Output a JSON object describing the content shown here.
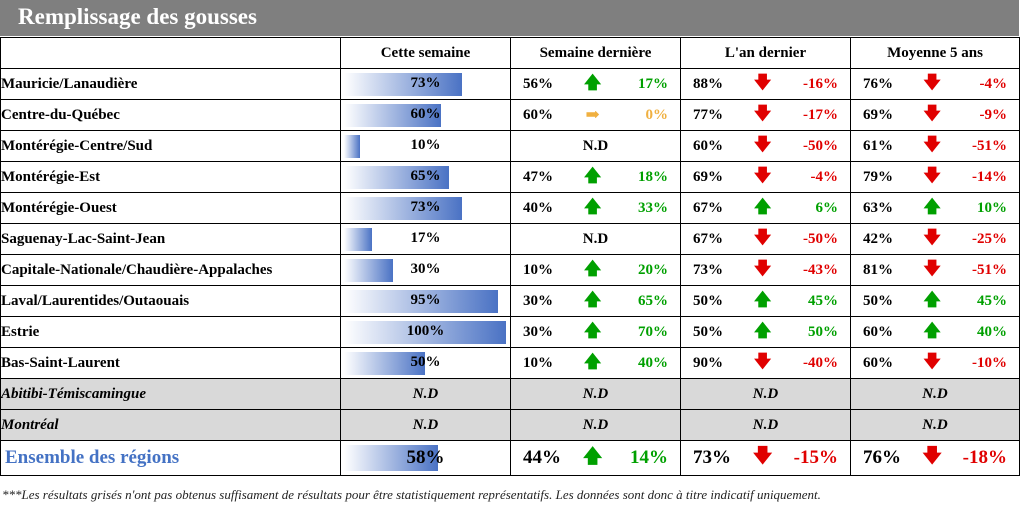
{
  "title": "Remplissage des gousses",
  "headers": [
    "",
    "Cette semaine",
    "Semaine dernière",
    "L'an dernier",
    "Moyenne 5 ans"
  ],
  "colors": {
    "up": "#00a000",
    "down": "#e00000",
    "flat": "#f0b040",
    "bar": "#4a72c4",
    "title_bg": "#7f7f7f",
    "grey_row": "#d9d9d9",
    "total_text": "#4472c4"
  },
  "rows": [
    {
      "region": "Mauricie/Lanaudière",
      "cs": "73%",
      "cs_fraction": 0.73,
      "sd": "56%",
      "sd_dir": "up",
      "sd_arrow": "🡅",
      "sd_var": "17%",
      "ad": "88%",
      "ad_dir": "down",
      "ad_arrow": "🡇",
      "ad_var": "-16%",
      "m5": "76%",
      "m5_dir": "down",
      "m5_arrow": "🡇",
      "m5_var": "-4%"
    },
    {
      "region": "Centre-du-Québec",
      "cs": "60%",
      "cs_fraction": 0.6,
      "sd": "60%",
      "sd_dir": "flat",
      "sd_arrow": "➡",
      "sd_var": "0%",
      "ad": "77%",
      "ad_dir": "down",
      "ad_arrow": "🡇",
      "ad_var": "-17%",
      "m5": "69%",
      "m5_dir": "down",
      "m5_arrow": "🡇",
      "m5_var": "-9%"
    },
    {
      "region": "Montérégie-Centre/Sud",
      "cs": "10%",
      "cs_fraction": 0.1,
      "sd_nd": "N.D",
      "ad": "60%",
      "ad_dir": "down",
      "ad_arrow": "🡇",
      "ad_var": "-50%",
      "m5": "61%",
      "m5_dir": "down",
      "m5_arrow": "🡇",
      "m5_var": "-51%"
    },
    {
      "region": "Montérégie-Est",
      "cs": "65%",
      "cs_fraction": 0.65,
      "sd": "47%",
      "sd_dir": "up",
      "sd_arrow": "🡅",
      "sd_var": "18%",
      "ad": "69%",
      "ad_dir": "down",
      "ad_arrow": "🡇",
      "ad_var": "-4%",
      "m5": "79%",
      "m5_dir": "down",
      "m5_arrow": "🡇",
      "m5_var": "-14%"
    },
    {
      "region": "Montérégie-Ouest",
      "cs": "73%",
      "cs_fraction": 0.73,
      "sd": "40%",
      "sd_dir": "up",
      "sd_arrow": "🡅",
      "sd_var": "33%",
      "ad": "67%",
      "ad_dir": "up",
      "ad_arrow": "🡅",
      "ad_var": "6%",
      "m5": "63%",
      "m5_dir": "up",
      "m5_arrow": "🡅",
      "m5_var": "10%"
    },
    {
      "region": "Saguenay-Lac-Saint-Jean",
      "cs": "17%",
      "cs_fraction": 0.17,
      "sd_nd": "N.D",
      "ad": "67%",
      "ad_dir": "down",
      "ad_arrow": "🡇",
      "ad_var": "-50%",
      "m5": "42%",
      "m5_dir": "down",
      "m5_arrow": "🡇",
      "m5_var": "-25%"
    },
    {
      "region": "Capitale-Nationale/Chaudière-Appalaches",
      "cs": "30%",
      "cs_fraction": 0.3,
      "sd": "10%",
      "sd_dir": "up",
      "sd_arrow": "🡅",
      "sd_var": "20%",
      "ad": "73%",
      "ad_dir": "down",
      "ad_arrow": "🡇",
      "ad_var": "-43%",
      "m5": "81%",
      "m5_dir": "down",
      "m5_arrow": "🡇",
      "m5_var": "-51%"
    },
    {
      "region": "Laval/Laurentides/Outaouais",
      "cs": "95%",
      "cs_fraction": 0.95,
      "sd": "30%",
      "sd_dir": "up",
      "sd_arrow": "🡅",
      "sd_var": "65%",
      "ad": "50%",
      "ad_dir": "up",
      "ad_arrow": "🡅",
      "ad_var": "45%",
      "m5": "50%",
      "m5_dir": "up",
      "m5_arrow": "🡅",
      "m5_var": "45%"
    },
    {
      "region": "Estrie",
      "cs": "100%",
      "cs_fraction": 1.0,
      "sd": "30%",
      "sd_dir": "up",
      "sd_arrow": "🡅",
      "sd_var": "70%",
      "ad": "50%",
      "ad_dir": "up",
      "ad_arrow": "🡅",
      "ad_var": "50%",
      "m5": "60%",
      "m5_dir": "up",
      "m5_arrow": "🡅",
      "m5_var": "40%"
    },
    {
      "region": "Bas-Saint-Laurent",
      "cs": "50%",
      "cs_fraction": 0.5,
      "sd": "10%",
      "sd_dir": "up",
      "sd_arrow": "🡅",
      "sd_var": "40%",
      "ad": "90%",
      "ad_dir": "down",
      "ad_arrow": "🡇",
      "ad_var": "-40%",
      "m5": "60%",
      "m5_dir": "down",
      "m5_arrow": "🡇",
      "m5_var": "-10%"
    }
  ],
  "grey_rows": [
    {
      "region": "Abitibi-Témiscamingue",
      "cs": "N.D",
      "sd": "N.D",
      "ad": "N.D",
      "m5": "N.D"
    },
    {
      "region": "Montréal",
      "cs": "N.D",
      "sd": "N.D",
      "ad": "N.D",
      "m5": "N.D"
    }
  ],
  "total": {
    "region": "Ensemble des régions",
    "cs": "58%",
    "cs_fraction": 0.58,
    "sd": "44%",
    "sd_dir": "up",
    "sd_arrow": "🡅",
    "sd_var": "14%",
    "ad": "73%",
    "ad_dir": "down",
    "ad_arrow": "🡇",
    "ad_var": "-15%",
    "m5": "76%",
    "m5_dir": "down",
    "m5_arrow": "🡇",
    "m5_var": "-18%"
  },
  "footnote": "***Les résultats grisés n'ont pas obtenus suffisament de résultats pour être statistiquement représentatifs. Les données sont donc à titre indicatif uniquement."
}
